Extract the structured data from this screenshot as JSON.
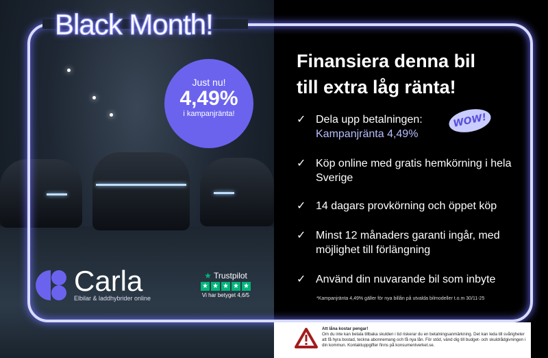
{
  "title": "Black Month!",
  "badge": {
    "line1": "Just nu!",
    "rate": "4,49%",
    "line3": "i kampanjränta!"
  },
  "headline": [
    "Finansiera denna bil",
    "till extra låg ränta!"
  ],
  "benefits": [
    {
      "text": "Dela upp betalningen:",
      "highlight": "Kampanjränta 4,49%"
    },
    {
      "text": "Köp online med gratis hemkörning i hela Sverige"
    },
    {
      "text": "14 dagars provkörning och öppet köp"
    },
    {
      "text": "Minst 12 månaders garanti ingår, med möjlighet till förlängning"
    },
    {
      "text": "Använd din nuvarande bil som inbyte"
    }
  ],
  "wow": "WOW!",
  "footnote": "*Kampanjränta 4,49% gäller för nya billån på utvalda bilmodeller t.o.m 30/11-25",
  "brand": {
    "name": "Carla",
    "tagline": "Elbilar & laddhybrider online"
  },
  "trustpilot": {
    "label": "Trustpilot",
    "rating_text": "Vi har betyget 4,6/5",
    "stars": 5
  },
  "warning": {
    "title": "Att låna kostar pengar!",
    "body": "Om du inte kan betala tillbaka skulden i tid riskerar du en betalningsanmärkning. Det kan leda till svårigheter att få hyra bostad, teckna abonnemang och få nya lån. För stöd, vänd dig till budget- och skuldrådgivningen i din kommun. Kontaktuppgifter finns på konsumentverket.se."
  },
  "colors": {
    "accent": "#6b63ee",
    "neon": "#d9dcff",
    "trustpilot": "#00b67a",
    "warning": "#a11d1d"
  }
}
